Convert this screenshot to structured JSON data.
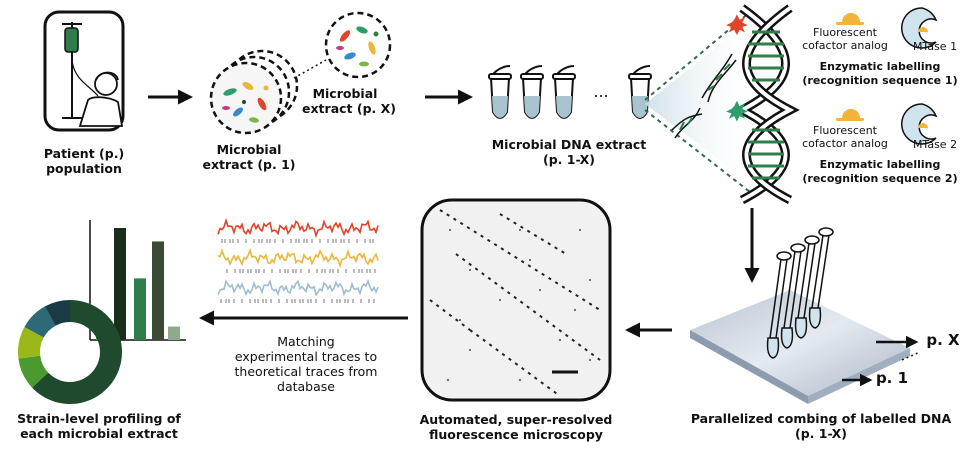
{
  "labels": {
    "patient": "Patient (p.) population",
    "extract_p1_line1": "Microbial",
    "extract_p1_line2": "extract (p. 1)",
    "extract_px_line1": "Microbial",
    "extract_px_line2": "extract (p. X)",
    "dna_extract_line1": "Microbial DNA extract",
    "dna_extract_line2": "(p. 1-X)",
    "ellipsis": "...",
    "fluor1_line1": "Fluorescent",
    "fluor1_line2": "cofactor analog",
    "mtase1": "MTase 1",
    "enzymatic1_line1": "Enzymatic labelling",
    "enzymatic1_line2": "(recognition sequence 1)",
    "fluor2_line1": "Fluorescent",
    "fluor2_line2": "cofactor analog",
    "mtase2": "MTase 2",
    "enzymatic2_line1": "Enzymatic labelling",
    "enzymatic2_line2": "(recognition sequence 2)",
    "combing_line1": "Parallelized combing of labelled DNA",
    "combing_line2": "(p. 1-X)",
    "px_arrow": "p. X",
    "p1_arrow": "p. 1",
    "microscopy_line1": "Automated, super-resolved",
    "microscopy_line2": "fluorescence microscopy",
    "matching_line1": "Matching",
    "matching_line2": "experimental traces to",
    "matching_line3": "theoretical traces from",
    "matching_line4": "database",
    "profiling_line1": "Strain-level profiling of",
    "profiling_line2": "each microbial extract"
  },
  "colors": {
    "dark_green": "#1f4a2e",
    "mid_green": "#2f7d4a",
    "lime": "#9bb81a",
    "teal": "#2e6a75",
    "trace_red": "#e0442a",
    "trace_yellow": "#e8b83a",
    "trace_blue": "#9fbcd0",
    "tube_blue": "#aac4cf",
    "mtase_blue": "#cfe4ec",
    "orange": "#f2b33a"
  },
  "bar_chart": {
    "values": [
      0.18,
      1.0,
      0.55,
      0.88,
      0.12
    ],
    "colors": [
      "#4a9a2e",
      "#1a2f1a",
      "#2f7d4a",
      "#3a4a34",
      "#8faa8a"
    ]
  },
  "donut": {
    "values": [
      0.63,
      0.1,
      0.1,
      0.09,
      0.08
    ],
    "colors": [
      "#1f4a2e",
      "#4a9a2e",
      "#9bb81a",
      "#2e6a75",
      "#1a3a44"
    ]
  }
}
